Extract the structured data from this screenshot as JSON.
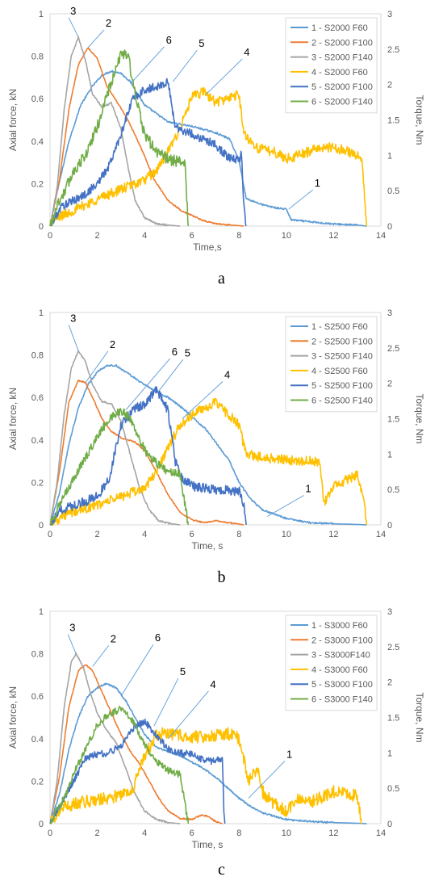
{
  "colors": {
    "s1": "#5b9bd5",
    "s2": "#ed7d31",
    "s3": "#a5a5a5",
    "s4": "#ffc000",
    "s5": "#4472c4",
    "s6": "#70ad47",
    "grid_axis": "#d9d9d9",
    "tick_text": "#595959"
  },
  "chart_data": [
    {
      "type": "line",
      "panel_label": "a",
      "xlabel": "Time,s",
      "ylabel": "Axial force, kN",
      "y2label": "Torque, Nm",
      "xlim": [
        0,
        14
      ],
      "ylim": [
        0,
        1
      ],
      "y2lim": [
        0,
        3
      ],
      "xticks": [
        "0",
        "2",
        "4",
        "6",
        "8",
        "10",
        "12",
        "14"
      ],
      "yticks": [
        "0",
        "0.2",
        "0.4",
        "0.6",
        "0.8",
        "1"
      ],
      "y2ticks": [
        "0",
        "0.5",
        "1",
        "1.5",
        "2",
        "2.5",
        "3"
      ],
      "grid": false,
      "legend": "top-right",
      "series": [
        {
          "name": "1 - S2000 F60",
          "callout": "1",
          "axis": "left",
          "noise": 0.004,
          "x": [
            0,
            0.3,
            0.8,
            1.3,
            1.8,
            2.2,
            2.6,
            3.0,
            3.4,
            4.0,
            5.0,
            6.0,
            7.0,
            7.6,
            8.0,
            8.3,
            9.0,
            9.6,
            10.0,
            10.2,
            11.0,
            12.0,
            13.0,
            13.4
          ],
          "y": [
            0,
            0.16,
            0.4,
            0.57,
            0.66,
            0.71,
            0.73,
            0.72,
            0.68,
            0.57,
            0.49,
            0.47,
            0.44,
            0.41,
            0.31,
            0.13,
            0.1,
            0.085,
            0.08,
            0.03,
            0.02,
            0.01,
            0.005,
            0.0
          ]
        },
        {
          "name": "2 - S2000 F100",
          "callout": "2",
          "axis": "left",
          "noise": 0.003,
          "x": [
            0,
            0.4,
            0.8,
            1.2,
            1.6,
            2.0,
            2.4,
            2.8,
            3.2,
            3.6,
            4.0,
            4.4,
            5.0,
            5.6,
            6.0,
            6.5,
            7.0,
            7.5,
            8.0,
            8.2
          ],
          "y": [
            0,
            0.22,
            0.55,
            0.76,
            0.84,
            0.79,
            0.66,
            0.59,
            0.52,
            0.43,
            0.33,
            0.22,
            0.12,
            0.07,
            0.05,
            0.025,
            0.012,
            0.006,
            0.002,
            0.0
          ]
        },
        {
          "name": "3 - S2000 F140",
          "callout": "3",
          "axis": "left",
          "noise": 0.004,
          "x": [
            0,
            0.3,
            0.6,
            0.9,
            1.2,
            1.5,
            1.8,
            2.2,
            2.6,
            3.0,
            3.3,
            3.6,
            4.0,
            4.5,
            5.0,
            5.5
          ],
          "y": [
            0,
            0.18,
            0.55,
            0.8,
            0.89,
            0.78,
            0.62,
            0.56,
            0.58,
            0.46,
            0.28,
            0.12,
            0.04,
            0.01,
            0.005,
            0.0
          ]
        },
        {
          "name": "4 - S2000 F60",
          "callout": "4",
          "axis": "right",
          "noise": 0.07,
          "x": [
            0,
            0.5,
            1.0,
            2.0,
            3.0,
            4.0,
            4.5,
            5.0,
            5.5,
            6.0,
            6.5,
            7.0,
            7.5,
            8.0,
            8.2,
            8.8,
            9.5,
            10.0,
            10.5,
            11.5,
            12.5,
            13.2,
            13.4
          ],
          "y": [
            0.05,
            0.15,
            0.22,
            0.38,
            0.52,
            0.65,
            0.78,
            1.05,
            1.38,
            1.82,
            1.9,
            1.75,
            1.8,
            1.86,
            1.3,
            1.1,
            1.05,
            0.95,
            1.0,
            1.12,
            1.08,
            0.95,
            0.0
          ]
        },
        {
          "name": "5 - S2000 F100",
          "callout": "5",
          "axis": "right",
          "noise": 0.06,
          "x": [
            0,
            0.5,
            1.0,
            1.5,
            2.0,
            2.5,
            3.0,
            3.5,
            4.0,
            4.5,
            5.0,
            5.3,
            6.0,
            7.0,
            7.5,
            8.0,
            8.1,
            8.2,
            8.3
          ],
          "y": [
            0,
            0.28,
            0.36,
            0.45,
            0.6,
            0.85,
            1.3,
            1.8,
            1.92,
            1.97,
            2.03,
            1.4,
            1.3,
            1.15,
            0.98,
            0.92,
            1.05,
            0.3,
            0.0
          ]
        },
        {
          "name": "6 - S2000 F140",
          "callout": "6",
          "axis": "right",
          "noise": 0.08,
          "x": [
            0,
            0.3,
            0.6,
            1.0,
            1.5,
            2.0,
            2.5,
            2.8,
            3.0,
            3.3,
            3.6,
            4.0,
            4.5,
            5.0,
            5.5,
            5.7,
            5.8,
            5.85
          ],
          "y": [
            0,
            0.3,
            0.48,
            0.78,
            1.0,
            1.4,
            1.95,
            2.2,
            2.45,
            2.42,
            1.85,
            1.3,
            1.05,
            0.95,
            0.9,
            0.92,
            0.3,
            0.0
          ]
        }
      ]
    },
    {
      "type": "line",
      "panel_label": "b",
      "xlabel": "Time, s",
      "ylabel": "Axial force, kN",
      "y2label": "Torque, Nm",
      "xlim": [
        0,
        14
      ],
      "ylim": [
        0,
        1
      ],
      "y2lim": [
        0,
        3
      ],
      "xticks": [
        "0",
        "2",
        "4",
        "6",
        "8",
        "10",
        "12",
        "14"
      ],
      "yticks": [
        "0",
        "0.2",
        "0.4",
        "0.6",
        "0.8",
        "1"
      ],
      "y2ticks": [
        "0",
        "0.5",
        "1",
        "1.5",
        "2",
        "2.5",
        "3"
      ],
      "grid": false,
      "legend": "top-right",
      "series": [
        {
          "name": "1 - S2500 F60",
          "callout": "1",
          "axis": "left",
          "noise": 0.004,
          "x": [
            0,
            0.4,
            0.8,
            1.2,
            1.6,
            2.0,
            2.4,
            2.8,
            3.2,
            3.6,
            4.0,
            4.6,
            5.0,
            5.6,
            6.0,
            6.6,
            7.0,
            7.6,
            8.0,
            8.5,
            9.0,
            10.0,
            11.0,
            12.0,
            13.0,
            13.4
          ],
          "y": [
            0,
            0.15,
            0.38,
            0.55,
            0.66,
            0.72,
            0.75,
            0.75,
            0.72,
            0.69,
            0.66,
            0.62,
            0.6,
            0.55,
            0.51,
            0.45,
            0.39,
            0.3,
            0.2,
            0.12,
            0.07,
            0.03,
            0.01,
            0.005,
            0.002,
            0.0
          ]
        },
        {
          "name": "2 - S2500 F100",
          "callout": "2",
          "axis": "left",
          "noise": 0.003,
          "x": [
            0,
            0.4,
            0.8,
            1.2,
            1.5,
            1.8,
            2.2,
            2.6,
            3.0,
            3.6,
            4.0,
            4.5,
            5.0,
            5.5,
            6.0,
            6.5,
            7.0,
            7.5,
            8.0,
            8.2
          ],
          "y": [
            0,
            0.25,
            0.58,
            0.68,
            0.67,
            0.6,
            0.5,
            0.44,
            0.41,
            0.39,
            0.35,
            0.25,
            0.14,
            0.06,
            0.025,
            0.01,
            0.02,
            0.01,
            0.004,
            0.0
          ]
        },
        {
          "name": "3 - S2500 F140",
          "callout": "3",
          "axis": "left",
          "noise": 0.004,
          "x": [
            0,
            0.3,
            0.6,
            0.9,
            1.2,
            1.5,
            1.8,
            2.2,
            2.6,
            3.0,
            3.4,
            3.8,
            4.2,
            4.6,
            5.0,
            5.5
          ],
          "y": [
            0,
            0.2,
            0.52,
            0.74,
            0.82,
            0.77,
            0.66,
            0.58,
            0.57,
            0.49,
            0.33,
            0.17,
            0.07,
            0.02,
            0.008,
            0.0
          ]
        },
        {
          "name": "4 - S2500 F60",
          "callout": "4",
          "axis": "right",
          "noise": 0.07,
          "x": [
            0,
            0.5,
            1.0,
            2.0,
            3.0,
            4.0,
            4.5,
            5.0,
            5.5,
            6.0,
            6.5,
            7.0,
            7.5,
            8.0,
            8.3,
            9.0,
            10.0,
            11.0,
            11.4,
            11.6,
            12.0,
            13.0,
            13.3,
            13.4
          ],
          "y": [
            0,
            0.12,
            0.18,
            0.28,
            0.4,
            0.52,
            0.75,
            1.1,
            1.4,
            1.55,
            1.65,
            1.72,
            1.58,
            1.4,
            1.0,
            0.95,
            0.92,
            0.9,
            0.88,
            0.3,
            0.55,
            0.7,
            0.3,
            0.0
          ]
        },
        {
          "name": "5 - S2500 F100",
          "callout": "5",
          "axis": "right",
          "noise": 0.07,
          "x": [
            0,
            0.5,
            1.0,
            1.5,
            2.0,
            2.5,
            3.0,
            3.5,
            4.0,
            4.5,
            5.0,
            5.3,
            5.6,
            6.0,
            7.0,
            8.0,
            8.2,
            8.3
          ],
          "y": [
            0,
            0.22,
            0.28,
            0.33,
            0.4,
            0.65,
            1.4,
            1.62,
            1.7,
            1.92,
            1.6,
            0.9,
            0.65,
            0.55,
            0.5,
            0.48,
            0.3,
            0.0
          ]
        },
        {
          "name": "6 - S2500 F140",
          "callout": "6",
          "axis": "right",
          "noise": 0.06,
          "x": [
            0,
            0.3,
            0.6,
            1.0,
            1.5,
            2.0,
            2.5,
            3.0,
            3.4,
            3.8,
            4.2,
            4.6,
            5.0,
            5.5,
            5.8,
            5.85
          ],
          "y": [
            0,
            0.22,
            0.4,
            0.65,
            0.95,
            1.25,
            1.5,
            1.62,
            1.5,
            1.2,
            0.95,
            0.85,
            0.75,
            0.72,
            0.1,
            0.0
          ]
        }
      ]
    },
    {
      "type": "line",
      "panel_label": "c",
      "xlabel": "Time, s",
      "ylabel": "Axial force, kN",
      "y2label": "Torque, Nm",
      "xlim": [
        0,
        14
      ],
      "ylim": [
        0,
        1
      ],
      "y2lim": [
        0,
        3
      ],
      "xticks": [
        "0",
        "2",
        "4",
        "6",
        "8",
        "10",
        "12",
        "14"
      ],
      "yticks": [
        "0",
        "0.2",
        "0.4",
        "0.6",
        "0.8",
        "1"
      ],
      "y2ticks": [
        "0",
        "0.5",
        "1",
        "1.5",
        "2",
        "2.5",
        "3"
      ],
      "grid": false,
      "legend": "top-right",
      "series": [
        {
          "name": "1 - S3000 F60",
          "callout": "1",
          "axis": "left",
          "noise": 0.004,
          "x": [
            0,
            0.4,
            0.8,
            1.2,
            1.6,
            2.0,
            2.4,
            2.8,
            3.2,
            3.6,
            4.0,
            4.5,
            5.0,
            5.5,
            6.0,
            6.5,
            7.0,
            7.5,
            8.0,
            8.5,
            9.0,
            10.0,
            11.0,
            12.0,
            13.0,
            13.4
          ],
          "y": [
            0,
            0.14,
            0.35,
            0.5,
            0.6,
            0.64,
            0.66,
            0.64,
            0.58,
            0.5,
            0.42,
            0.36,
            0.34,
            0.32,
            0.29,
            0.26,
            0.22,
            0.17,
            0.12,
            0.08,
            0.05,
            0.02,
            0.01,
            0.005,
            0.002,
            0.0
          ]
        },
        {
          "name": "2 - S3000 F100",
          "callout": "2",
          "axis": "left",
          "noise": 0.003,
          "x": [
            0,
            0.4,
            0.8,
            1.2,
            1.5,
            1.8,
            2.2,
            2.6,
            3.0,
            3.4,
            3.8,
            4.2,
            4.6,
            5.0,
            5.5,
            6.0,
            6.4,
            6.7,
            7.0,
            7.3
          ],
          "y": [
            0,
            0.22,
            0.55,
            0.72,
            0.75,
            0.72,
            0.62,
            0.52,
            0.42,
            0.34,
            0.28,
            0.2,
            0.12,
            0.06,
            0.025,
            0.02,
            0.04,
            0.035,
            0.01,
            0.0
          ]
        },
        {
          "name": "3 - S3000F140",
          "callout": "3",
          "axis": "left",
          "noise": 0.004,
          "x": [
            0,
            0.3,
            0.6,
            0.9,
            1.1,
            1.4,
            1.7,
            2.0,
            2.4,
            2.8,
            3.2,
            3.6,
            4.0,
            4.5,
            5.0,
            5.5
          ],
          "y": [
            0,
            0.2,
            0.55,
            0.76,
            0.8,
            0.74,
            0.62,
            0.52,
            0.44,
            0.38,
            0.26,
            0.14,
            0.06,
            0.02,
            0.005,
            0.0
          ]
        },
        {
          "name": "4 - S3000 F60",
          "callout": "4",
          "axis": "right",
          "noise": 0.09,
          "x": [
            0,
            0.5,
            1.0,
            2.0,
            3.0,
            3.5,
            4.0,
            4.5,
            5.0,
            6.0,
            7.0,
            7.5,
            8.0,
            8.4,
            8.8,
            9.0,
            9.5,
            10.0,
            10.5,
            11.0,
            12.0,
            13.0,
            13.2
          ],
          "y": [
            0,
            0.22,
            0.28,
            0.34,
            0.4,
            0.5,
            0.95,
            1.25,
            1.28,
            1.22,
            1.25,
            1.28,
            1.2,
            0.6,
            0.8,
            0.45,
            0.28,
            0.18,
            0.35,
            0.3,
            0.45,
            0.4,
            0.0
          ]
        },
        {
          "name": "5 - S3000 F100",
          "callout": "5",
          "axis": "right",
          "noise": 0.05,
          "x": [
            0,
            0.5,
            1.0,
            1.5,
            2.0,
            2.5,
            3.0,
            3.5,
            4.0,
            4.5,
            5.0,
            5.5,
            6.0,
            6.5,
            7.0,
            7.3,
            7.35,
            7.4
          ],
          "y": [
            0,
            0.3,
            0.6,
            0.92,
            0.98,
            1.0,
            1.1,
            1.35,
            1.45,
            1.25,
            1.05,
            1.0,
            0.98,
            0.9,
            0.88,
            0.92,
            0.2,
            0.0
          ]
        },
        {
          "name": "6 - S3000 F140",
          "callout": "6",
          "axis": "right",
          "noise": 0.05,
          "x": [
            0,
            0.3,
            0.6,
            1.0,
            1.5,
            2.0,
            2.5,
            3.0,
            3.4,
            3.8,
            4.2,
            4.6,
            5.0,
            5.5,
            5.8,
            5.85
          ],
          "y": [
            0,
            0.2,
            0.35,
            0.7,
            1.05,
            1.4,
            1.55,
            1.62,
            1.5,
            1.25,
            1.0,
            0.85,
            0.75,
            0.7,
            0.1,
            0.0
          ]
        }
      ]
    }
  ]
}
